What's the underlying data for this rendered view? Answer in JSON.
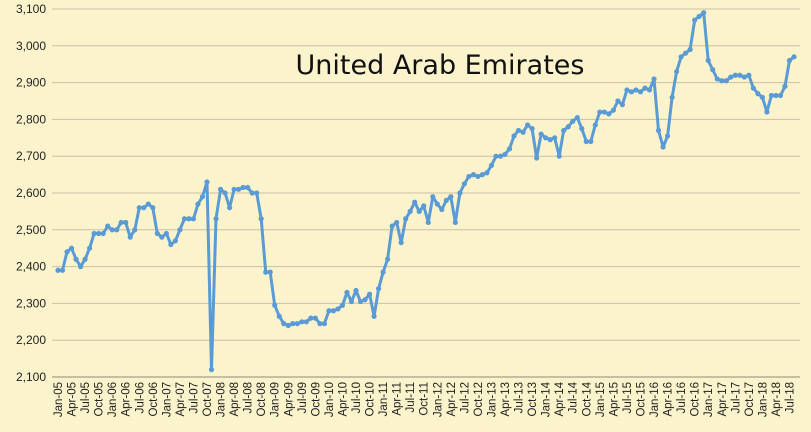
{
  "chart_data": {
    "type": "line",
    "title": "United Arab Emirates",
    "xlabel": "",
    "ylabel": "",
    "ylim": [
      2100,
      3100
    ],
    "yticks": [
      2100,
      2200,
      2300,
      2400,
      2500,
      2600,
      2700,
      2800,
      2900,
      3000,
      3100
    ],
    "ytick_labels": [
      "2,100",
      "2,200",
      "2,300",
      "2,400",
      "2,500",
      "2,600",
      "2,700",
      "2,800",
      "2,900",
      "3,000",
      "3,100"
    ],
    "grid": true,
    "legend": "none",
    "color": "#5B9BD5",
    "x_tick_labels": [
      "Jan-05",
      "Apr-05",
      "Jul-05",
      "Oct-05",
      "Jan-06",
      "Apr-06",
      "Jul-06",
      "Oct-06",
      "Jan-07",
      "Apr-07",
      "Jul-07",
      "Oct-07",
      "Jan-08",
      "Apr-08",
      "Jul-08",
      "Oct-08",
      "Jan-09",
      "Apr-09",
      "Jul-09",
      "Oct-09",
      "Jan-10",
      "Apr-10",
      "Jul-10",
      "Oct-10",
      "Jan-11",
      "Apr-11",
      "Jul-11",
      "Oct-11",
      "Jan-12",
      "Apr-12",
      "Jul-12",
      "Oct-12",
      "Jan-13",
      "Apr-13",
      "Jul-13",
      "Oct-13",
      "Jan-14",
      "Apr-14",
      "Jul-14",
      "Oct-14",
      "Jan-15",
      "Apr-15",
      "Jul-15",
      "Oct-15",
      "Jan-16",
      "Apr-16",
      "Jul-16",
      "Oct-16",
      "Jan-17",
      "Apr-17",
      "Jul-17",
      "Oct-17",
      "Jan-18",
      "Apr-18",
      "Jul-18"
    ],
    "x": [
      "Jan-05",
      "Feb-05",
      "Mar-05",
      "Apr-05",
      "May-05",
      "Jun-05",
      "Jul-05",
      "Aug-05",
      "Sep-05",
      "Oct-05",
      "Nov-05",
      "Dec-05",
      "Jan-06",
      "Feb-06",
      "Mar-06",
      "Apr-06",
      "May-06",
      "Jun-06",
      "Jul-06",
      "Aug-06",
      "Sep-06",
      "Oct-06",
      "Nov-06",
      "Dec-06",
      "Jan-07",
      "Feb-07",
      "Mar-07",
      "Apr-07",
      "May-07",
      "Jun-07",
      "Jul-07",
      "Aug-07",
      "Sep-07",
      "Oct-07",
      "Nov-07",
      "Dec-07",
      "Jan-08",
      "Feb-08",
      "Mar-08",
      "Apr-08",
      "May-08",
      "Jun-08",
      "Jul-08",
      "Aug-08",
      "Sep-08",
      "Oct-08",
      "Nov-08",
      "Dec-08",
      "Jan-09",
      "Feb-09",
      "Mar-09",
      "Apr-09",
      "May-09",
      "Jun-09",
      "Jul-09",
      "Aug-09",
      "Sep-09",
      "Oct-09",
      "Nov-09",
      "Dec-09",
      "Jan-10",
      "Feb-10",
      "Mar-10",
      "Apr-10",
      "May-10",
      "Jun-10",
      "Jul-10",
      "Aug-10",
      "Sep-10",
      "Oct-10",
      "Nov-10",
      "Dec-10",
      "Jan-11",
      "Feb-11",
      "Mar-11",
      "Apr-11",
      "May-11",
      "Jun-11",
      "Jul-11",
      "Aug-11",
      "Sep-11",
      "Oct-11",
      "Nov-11",
      "Dec-11",
      "Jan-12",
      "Feb-12",
      "Mar-12",
      "Apr-12",
      "May-12",
      "Jun-12",
      "Jul-12",
      "Aug-12",
      "Sep-12",
      "Oct-12",
      "Nov-12",
      "Dec-12",
      "Jan-13",
      "Feb-13",
      "Mar-13",
      "Apr-13",
      "May-13",
      "Jun-13",
      "Jul-13",
      "Aug-13",
      "Sep-13",
      "Oct-13",
      "Nov-13",
      "Dec-13",
      "Jan-14",
      "Feb-14",
      "Mar-14",
      "Apr-14",
      "May-14",
      "Jun-14",
      "Jul-14",
      "Aug-14",
      "Sep-14",
      "Oct-14",
      "Nov-14",
      "Dec-14",
      "Jan-15",
      "Feb-15",
      "Mar-15",
      "Apr-15",
      "May-15",
      "Jun-15",
      "Jul-15",
      "Aug-15",
      "Sep-15",
      "Oct-15",
      "Nov-15",
      "Dec-15",
      "Jan-16",
      "Feb-16",
      "Mar-16",
      "Apr-16",
      "May-16",
      "Jun-16",
      "Jul-16",
      "Aug-16",
      "Sep-16",
      "Oct-16",
      "Nov-16",
      "Dec-16",
      "Jan-17",
      "Feb-17",
      "Mar-17",
      "Apr-17",
      "May-17",
      "Jun-17",
      "Jul-17",
      "Aug-17",
      "Sep-17",
      "Oct-17",
      "Nov-17",
      "Dec-17",
      "Jan-18",
      "Feb-18",
      "Mar-18",
      "Apr-18",
      "May-18",
      "Jun-18",
      "Jul-18",
      "Aug-18"
    ],
    "series": [
      {
        "values": [
          2390,
          2390,
          2440,
          2450,
          2420,
          2400,
          2420,
          2450,
          2490,
          2490,
          2490,
          2510,
          2500,
          2500,
          2520,
          2520,
          2480,
          2500,
          2560,
          2560,
          2570,
          2560,
          2490,
          2480,
          2490,
          2460,
          2470,
          2500,
          2530,
          2530,
          2530,
          2570,
          2590,
          2630,
          2120,
          2530,
          2610,
          2600,
          2560,
          2610,
          2610,
          2615,
          2615,
          2600,
          2600,
          2530,
          2385,
          2385,
          2295,
          2265,
          2245,
          2240,
          2245,
          2245,
          2250,
          2250,
          2260,
          2260,
          2245,
          2245,
          2280,
          2280,
          2285,
          2295,
          2330,
          2305,
          2335,
          2305,
          2310,
          2325,
          2265,
          2340,
          2385,
          2420,
          2510,
          2520,
          2465,
          2530,
          2550,
          2575,
          2550,
          2565,
          2520,
          2590,
          2570,
          2555,
          2580,
          2590,
          2520,
          2600,
          2625,
          2645,
          2650,
          2645,
          2650,
          2655,
          2675,
          2700,
          2700,
          2705,
          2720,
          2755,
          2770,
          2765,
          2785,
          2775,
          2695,
          2760,
          2750,
          2745,
          2750,
          2700,
          2770,
          2780,
          2795,
          2805,
          2775,
          2740,
          2740,
          2785,
          2820,
          2820,
          2815,
          2825,
          2850,
          2840,
          2880,
          2875,
          2880,
          2875,
          2885,
          2880,
          2910,
          2770,
          2725,
          2755,
          2860,
          2930,
          2970,
          2980,
          2990,
          3070,
          3080,
          3090,
          2960,
          2935,
          2910,
          2905,
          2905,
          2915,
          2920,
          2920,
          2915,
          2920,
          2885,
          2870,
          2860,
          2820,
          2865,
          2865,
          2865,
          2890,
          2960,
          2970
        ]
      }
    ]
  }
}
